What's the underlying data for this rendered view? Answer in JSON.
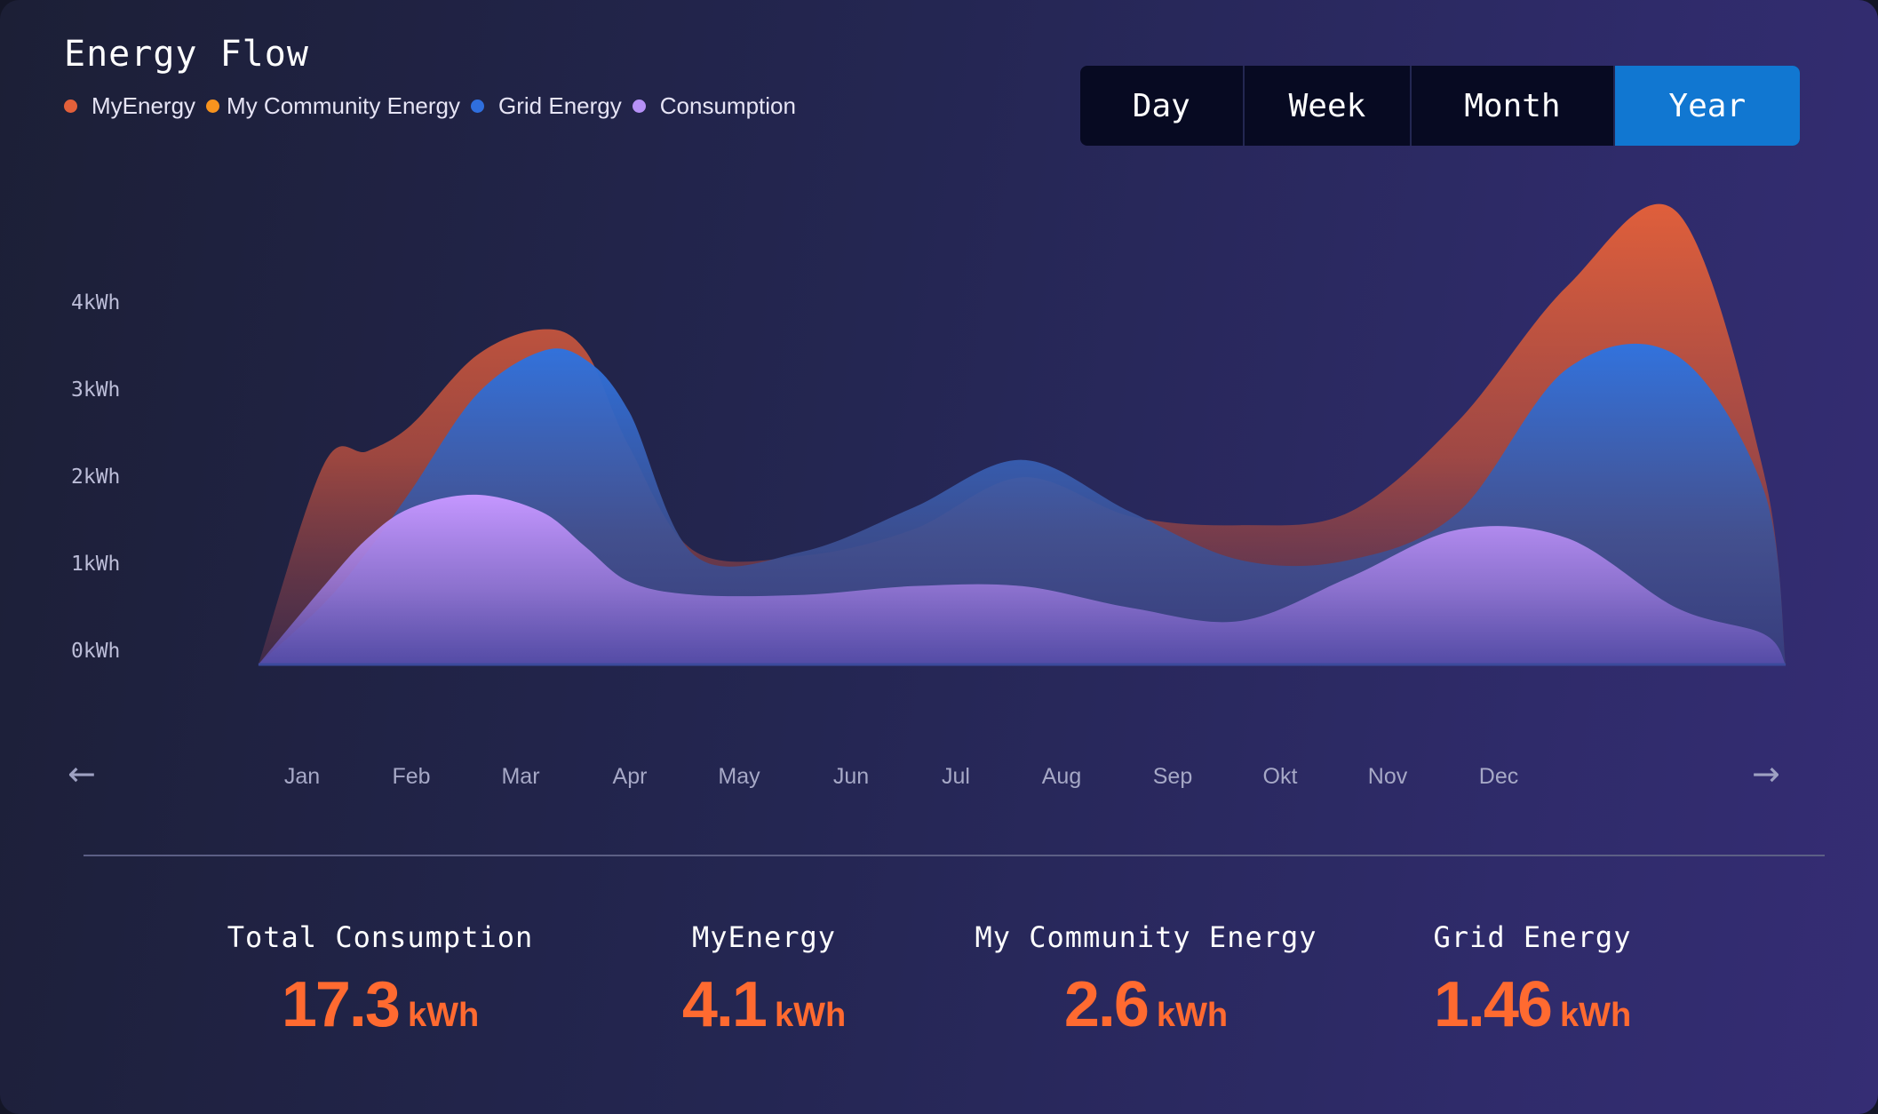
{
  "header": {
    "title": "Energy Flow"
  },
  "legend": [
    {
      "label": "MyEnergy",
      "color": "#e3603a"
    },
    {
      "label": "My Community Energy",
      "color": "#f7931e"
    },
    {
      "label": "Grid Energy",
      "color": "#2f6fde"
    },
    {
      "label": "Consumption",
      "color": "#b691f7"
    }
  ],
  "period_tabs": {
    "items": [
      "Day",
      "Week",
      "Month",
      "Year"
    ],
    "selected": "Year"
  },
  "nav": {
    "prev_icon": "arrow-left-icon",
    "next_icon": "arrow-right-icon"
  },
  "chart_data": {
    "type": "area",
    "title": "",
    "xlabel": "",
    "ylabel": "",
    "y_tick_labels": [
      "4kWh",
      "3kWh",
      "2kWh",
      "1kWh",
      "0kWh"
    ],
    "ylim": [
      0,
      4
    ],
    "categories": [
      "Jan",
      "Feb",
      "Mar",
      "Apr",
      "May",
      "Jun",
      "Jul",
      "Aug",
      "Sep",
      "Okt",
      "Nov",
      "Dec"
    ],
    "x_positions": [
      -0.4,
      0.6,
      1.6,
      2.6,
      3.6,
      4.6,
      5.6,
      6.6,
      7.6,
      8.6,
      9.6,
      10.6,
      11.6,
      12.6,
      13.6
    ],
    "series": [
      {
        "name": "MyEnergy",
        "color": "#e3603a",
        "x": [
          -0.4,
          0.2,
          0.6,
          1.0,
          1.6,
          2.2,
          2.6,
          3.0,
          3.6,
          4.6,
          5.6,
          6.6,
          7.6,
          8.6,
          9.6,
          10.6,
          11.6,
          12.6,
          13.4,
          13.6
        ],
        "values": [
          0,
          2.3,
          2.45,
          2.75,
          3.55,
          3.85,
          3.6,
          2.5,
          1.3,
          1.25,
          1.55,
          2.15,
          1.7,
          1.6,
          1.75,
          2.8,
          4.35,
          5.2,
          2.2,
          0
        ]
      },
      {
        "name": "Grid Energy",
        "color": "#2f6fde",
        "x": [
          -0.4,
          0.2,
          0.6,
          1.0,
          1.6,
          2.2,
          2.6,
          3.0,
          3.6,
          4.6,
          5.6,
          6.6,
          7.6,
          8.6,
          9.6,
          10.6,
          11.6,
          12.6,
          13.4,
          13.6
        ],
        "values": [
          0,
          0.7,
          1.3,
          2.0,
          3.1,
          3.6,
          3.5,
          2.9,
          1.25,
          1.3,
          1.8,
          2.35,
          1.75,
          1.2,
          1.2,
          1.75,
          3.4,
          3.55,
          2.0,
          0
        ]
      },
      {
        "name": "Consumption",
        "color": "#b691f7",
        "x": [
          -0.4,
          0.2,
          0.6,
          1.0,
          1.6,
          2.2,
          2.6,
          3.0,
          3.6,
          4.6,
          5.6,
          6.6,
          7.6,
          8.6,
          9.6,
          10.6,
          11.6,
          12.6,
          13.4,
          13.6
        ],
        "values": [
          0,
          0.9,
          1.45,
          1.8,
          1.95,
          1.75,
          1.35,
          0.95,
          0.8,
          0.8,
          0.9,
          0.9,
          0.65,
          0.5,
          1.0,
          1.55,
          1.45,
          0.65,
          0.35,
          0
        ]
      }
    ],
    "grid": false,
    "legend_position": "top-left"
  },
  "summary": [
    {
      "label": "Total Consumption",
      "value": "17.3",
      "unit": "kWh"
    },
    {
      "label": "MyEnergy",
      "value": "4.1",
      "unit": "kWh"
    },
    {
      "label": "My Community Energy",
      "value": "2.6",
      "unit": "kWh"
    },
    {
      "label": "Grid Energy",
      "value": "1.46",
      "unit": "kWh"
    }
  ]
}
